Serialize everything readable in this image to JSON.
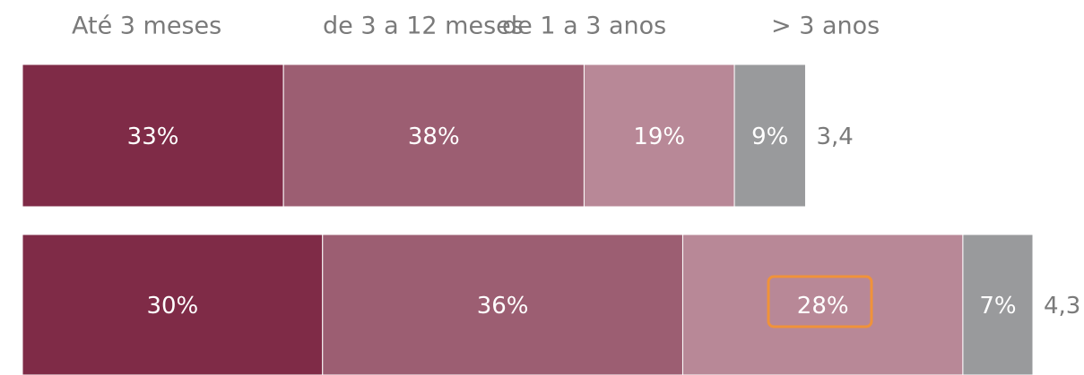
{
  "chart_data": {
    "type": "stacked-bar-horizontal",
    "series": [
      {
        "name": "Até 3 meses",
        "color": "#7f2b47",
        "values": [
          33,
          30
        ],
        "value_labels": [
          "33%",
          "30%"
        ]
      },
      {
        "name": "de 3 a 12 meses",
        "color": "#9c5e72",
        "values": [
          38,
          36
        ],
        "value_labels": [
          "38%",
          "36%"
        ]
      },
      {
        "name": "de 1 a 3 anos",
        "color": "#b88897",
        "values": [
          19,
          28
        ],
        "value_labels": [
          "19%",
          "28%"
        ]
      },
      {
        "name": "> 3 anos",
        "color": "#999a9c",
        "values": [
          9,
          7
        ],
        "value_labels": [
          "9%",
          "7%"
        ]
      }
    ],
    "totals": {
      "values": [
        3.4,
        4.3
      ],
      "value_labels": [
        "3,4",
        "4,3"
      ]
    }
  }
}
